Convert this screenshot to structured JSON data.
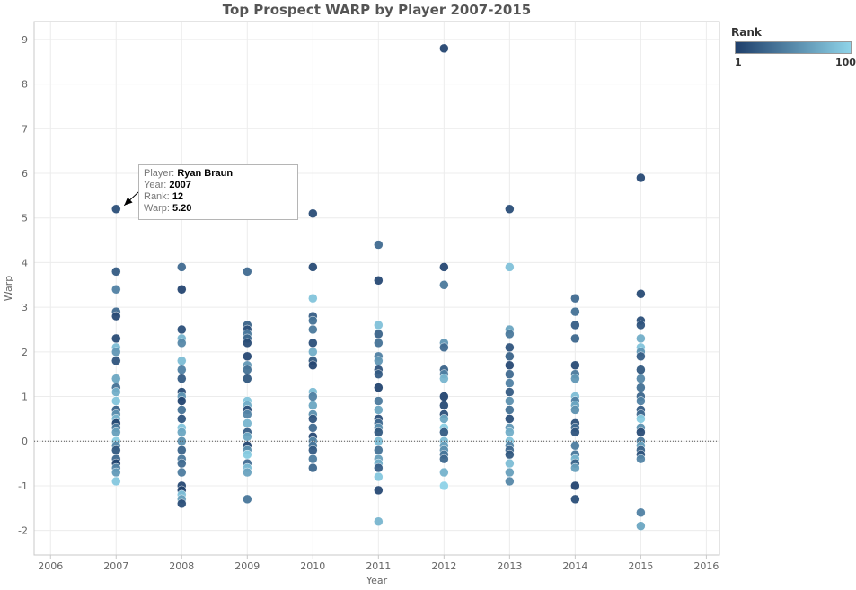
{
  "chart_data": {
    "type": "scatter",
    "title": "Top Prospect WARP by Player 2007-2015",
    "xlabel": "Year",
    "ylabel": "Warp",
    "xlim": [
      2005.75,
      2016.2
    ],
    "ylim": [
      -2.55,
      9.4
    ],
    "x_ticks": [
      "2006",
      "2007",
      "2008",
      "2009",
      "2010",
      "2011",
      "2012",
      "2013",
      "2014",
      "2015",
      "2016"
    ],
    "y_ticks": [
      "-2",
      "-1",
      "0",
      "1",
      "2",
      "3",
      "4",
      "5",
      "6",
      "7",
      "8",
      "9"
    ],
    "grid": true,
    "zero_line": "dotted",
    "legend": {
      "title": "Rank",
      "min": "1",
      "max": "100",
      "placement": "top-right",
      "color_low": "#1f3f6b",
      "color_high": "#8ed3e8"
    },
    "points": [
      {
        "x": 2007,
        "y": 5.2,
        "r": 12
      },
      {
        "x": 2007,
        "y": 3.8,
        "r": 20
      },
      {
        "x": 2007,
        "y": 3.4,
        "r": 45
      },
      {
        "x": 2007,
        "y": 2.9,
        "r": 30
      },
      {
        "x": 2007,
        "y": 2.8,
        "r": 8
      },
      {
        "x": 2007,
        "y": 2.3,
        "r": 10
      },
      {
        "x": 2007,
        "y": 2.1,
        "r": 85
      },
      {
        "x": 2007,
        "y": 2.0,
        "r": 60
      },
      {
        "x": 2007,
        "y": 1.8,
        "r": 15
      },
      {
        "x": 2007,
        "y": 1.4,
        "r": 70
      },
      {
        "x": 2007,
        "y": 1.2,
        "r": 35
      },
      {
        "x": 2007,
        "y": 1.1,
        "r": 75
      },
      {
        "x": 2007,
        "y": 0.9,
        "r": 90
      },
      {
        "x": 2007,
        "y": 0.7,
        "r": 25
      },
      {
        "x": 2007,
        "y": 0.6,
        "r": 55
      },
      {
        "x": 2007,
        "y": 0.5,
        "r": 80
      },
      {
        "x": 2007,
        "y": 0.4,
        "r": 5
      },
      {
        "x": 2007,
        "y": 0.3,
        "r": 40
      },
      {
        "x": 2007,
        "y": 0.2,
        "r": 65
      },
      {
        "x": 2007,
        "y": 0.0,
        "r": 95
      },
      {
        "x": 2007,
        "y": -0.1,
        "r": 50
      },
      {
        "x": 2007,
        "y": -0.2,
        "r": 18
      },
      {
        "x": 2007,
        "y": -0.4,
        "r": 28
      },
      {
        "x": 2007,
        "y": -0.5,
        "r": 3
      },
      {
        "x": 2007,
        "y": -0.6,
        "r": 48
      },
      {
        "x": 2007,
        "y": -0.7,
        "r": 62
      },
      {
        "x": 2007,
        "y": -0.9,
        "r": 92
      },
      {
        "x": 2008,
        "y": 3.9,
        "r": 30
      },
      {
        "x": 2008,
        "y": 3.4,
        "r": 6
      },
      {
        "x": 2008,
        "y": 2.5,
        "r": 12
      },
      {
        "x": 2008,
        "y": 2.3,
        "r": 80
      },
      {
        "x": 2008,
        "y": 2.2,
        "r": 50
      },
      {
        "x": 2008,
        "y": 1.8,
        "r": 85
      },
      {
        "x": 2008,
        "y": 1.6,
        "r": 45
      },
      {
        "x": 2008,
        "y": 1.4,
        "r": 20
      },
      {
        "x": 2008,
        "y": 1.1,
        "r": 10
      },
      {
        "x": 2008,
        "y": 1.0,
        "r": 60
      },
      {
        "x": 2008,
        "y": 0.9,
        "r": 4
      },
      {
        "x": 2008,
        "y": 0.7,
        "r": 35
      },
      {
        "x": 2008,
        "y": 0.5,
        "r": 15
      },
      {
        "x": 2008,
        "y": 0.3,
        "r": 90
      },
      {
        "x": 2008,
        "y": 0.2,
        "r": 70
      },
      {
        "x": 2008,
        "y": 0.0,
        "r": 55
      },
      {
        "x": 2008,
        "y": -0.2,
        "r": 25
      },
      {
        "x": 2008,
        "y": -0.4,
        "r": 40
      },
      {
        "x": 2008,
        "y": -0.5,
        "r": 30
      },
      {
        "x": 2008,
        "y": -0.7,
        "r": 42
      },
      {
        "x": 2008,
        "y": -1.0,
        "r": 8
      },
      {
        "x": 2008,
        "y": -1.1,
        "r": 2
      },
      {
        "x": 2008,
        "y": -1.2,
        "r": 88
      },
      {
        "x": 2008,
        "y": -1.3,
        "r": 65
      },
      {
        "x": 2008,
        "y": -1.4,
        "r": 11
      },
      {
        "x": 2009,
        "y": 3.8,
        "r": 30
      },
      {
        "x": 2009,
        "y": 2.6,
        "r": 25
      },
      {
        "x": 2009,
        "y": 2.5,
        "r": 14
      },
      {
        "x": 2009,
        "y": 2.4,
        "r": 40
      },
      {
        "x": 2009,
        "y": 2.3,
        "r": 28
      },
      {
        "x": 2009,
        "y": 2.2,
        "r": 9
      },
      {
        "x": 2009,
        "y": 1.9,
        "r": 7
      },
      {
        "x": 2009,
        "y": 1.7,
        "r": 60
      },
      {
        "x": 2009,
        "y": 1.6,
        "r": 35
      },
      {
        "x": 2009,
        "y": 1.4,
        "r": 18
      },
      {
        "x": 2009,
        "y": 0.9,
        "r": 90
      },
      {
        "x": 2009,
        "y": 0.8,
        "r": 75
      },
      {
        "x": 2009,
        "y": 0.7,
        "r": 12
      },
      {
        "x": 2009,
        "y": 0.6,
        "r": 48
      },
      {
        "x": 2009,
        "y": 0.4,
        "r": 80
      },
      {
        "x": 2009,
        "y": 0.2,
        "r": 22
      },
      {
        "x": 2009,
        "y": 0.1,
        "r": 70
      },
      {
        "x": 2009,
        "y": -0.1,
        "r": 5
      },
      {
        "x": 2009,
        "y": -0.2,
        "r": 55
      },
      {
        "x": 2009,
        "y": -0.3,
        "r": 95
      },
      {
        "x": 2009,
        "y": -0.5,
        "r": 32
      },
      {
        "x": 2009,
        "y": -0.6,
        "r": 85
      },
      {
        "x": 2009,
        "y": -0.7,
        "r": 68
      },
      {
        "x": 2009,
        "y": -1.3,
        "r": 38
      },
      {
        "x": 2010,
        "y": 5.1,
        "r": 10
      },
      {
        "x": 2010,
        "y": 3.9,
        "r": 9
      },
      {
        "x": 2010,
        "y": 3.2,
        "r": 90
      },
      {
        "x": 2010,
        "y": 2.8,
        "r": 22
      },
      {
        "x": 2010,
        "y": 2.7,
        "r": 35
      },
      {
        "x": 2010,
        "y": 2.5,
        "r": 40
      },
      {
        "x": 2010,
        "y": 2.2,
        "r": 12
      },
      {
        "x": 2010,
        "y": 2.0,
        "r": 75
      },
      {
        "x": 2010,
        "y": 1.8,
        "r": 18
      },
      {
        "x": 2010,
        "y": 1.7,
        "r": 6
      },
      {
        "x": 2010,
        "y": 1.1,
        "r": 85
      },
      {
        "x": 2010,
        "y": 1.0,
        "r": 45
      },
      {
        "x": 2010,
        "y": 0.8,
        "r": 70
      },
      {
        "x": 2010,
        "y": 0.6,
        "r": 55
      },
      {
        "x": 2010,
        "y": 0.5,
        "r": 15
      },
      {
        "x": 2010,
        "y": 0.3,
        "r": 30
      },
      {
        "x": 2010,
        "y": 0.1,
        "r": 8
      },
      {
        "x": 2010,
        "y": 0.0,
        "r": 50
      },
      {
        "x": 2010,
        "y": -0.1,
        "r": 38
      },
      {
        "x": 2010,
        "y": -0.2,
        "r": 20
      },
      {
        "x": 2010,
        "y": -0.4,
        "r": 42
      },
      {
        "x": 2010,
        "y": -0.6,
        "r": 28
      },
      {
        "x": 2011,
        "y": 4.4,
        "r": 30
      },
      {
        "x": 2011,
        "y": 3.6,
        "r": 8
      },
      {
        "x": 2011,
        "y": 2.6,
        "r": 88
      },
      {
        "x": 2011,
        "y": 2.4,
        "r": 25
      },
      {
        "x": 2011,
        "y": 2.2,
        "r": 35
      },
      {
        "x": 2011,
        "y": 1.9,
        "r": 45
      },
      {
        "x": 2011,
        "y": 1.8,
        "r": 60
      },
      {
        "x": 2011,
        "y": 1.6,
        "r": 15
      },
      {
        "x": 2011,
        "y": 1.5,
        "r": 20
      },
      {
        "x": 2011,
        "y": 1.2,
        "r": 5
      },
      {
        "x": 2011,
        "y": 0.9,
        "r": 40
      },
      {
        "x": 2011,
        "y": 0.7,
        "r": 70
      },
      {
        "x": 2011,
        "y": 0.5,
        "r": 12
      },
      {
        "x": 2011,
        "y": 0.4,
        "r": 30
      },
      {
        "x": 2011,
        "y": 0.3,
        "r": 55
      },
      {
        "x": 2011,
        "y": 0.2,
        "r": 18
      },
      {
        "x": 2011,
        "y": 0.0,
        "r": 85
      },
      {
        "x": 2011,
        "y": -0.2,
        "r": 35
      },
      {
        "x": 2011,
        "y": -0.4,
        "r": 65
      },
      {
        "x": 2011,
        "y": -0.5,
        "r": 75
      },
      {
        "x": 2011,
        "y": -0.6,
        "r": 22
      },
      {
        "x": 2011,
        "y": -0.8,
        "r": 92
      },
      {
        "x": 2011,
        "y": -1.1,
        "r": 8
      },
      {
        "x": 2011,
        "y": -1.8,
        "r": 80
      },
      {
        "x": 2012,
        "y": 8.8,
        "r": 6
      },
      {
        "x": 2012,
        "y": 3.9,
        "r": 7
      },
      {
        "x": 2012,
        "y": 3.5,
        "r": 40
      },
      {
        "x": 2012,
        "y": 2.2,
        "r": 60
      },
      {
        "x": 2012,
        "y": 2.1,
        "r": 30
      },
      {
        "x": 2012,
        "y": 1.6,
        "r": 25
      },
      {
        "x": 2012,
        "y": 1.5,
        "r": 45
      },
      {
        "x": 2012,
        "y": 1.4,
        "r": 80
      },
      {
        "x": 2012,
        "y": 1.0,
        "r": 5
      },
      {
        "x": 2012,
        "y": 0.8,
        "r": 9
      },
      {
        "x": 2012,
        "y": 0.6,
        "r": 12
      },
      {
        "x": 2012,
        "y": 0.5,
        "r": 70
      },
      {
        "x": 2012,
        "y": 0.3,
        "r": 95
      },
      {
        "x": 2012,
        "y": 0.2,
        "r": 20
      },
      {
        "x": 2012,
        "y": 0.0,
        "r": 85
      },
      {
        "x": 2012,
        "y": -0.1,
        "r": 65
      },
      {
        "x": 2012,
        "y": -0.2,
        "r": 55
      },
      {
        "x": 2012,
        "y": -0.3,
        "r": 38
      },
      {
        "x": 2012,
        "y": -0.4,
        "r": 28
      },
      {
        "x": 2012,
        "y": -0.7,
        "r": 78
      },
      {
        "x": 2012,
        "y": -1.0,
        "r": 100
      },
      {
        "x": 2013,
        "y": 5.2,
        "r": 11
      },
      {
        "x": 2013,
        "y": 3.9,
        "r": 88
      },
      {
        "x": 2013,
        "y": 2.5,
        "r": 70
      },
      {
        "x": 2013,
        "y": 2.4,
        "r": 40
      },
      {
        "x": 2013,
        "y": 2.1,
        "r": 15
      },
      {
        "x": 2013,
        "y": 1.9,
        "r": 25
      },
      {
        "x": 2013,
        "y": 1.7,
        "r": 8
      },
      {
        "x": 2013,
        "y": 1.5,
        "r": 30
      },
      {
        "x": 2013,
        "y": 1.3,
        "r": 45
      },
      {
        "x": 2013,
        "y": 1.1,
        "r": 20
      },
      {
        "x": 2013,
        "y": 0.9,
        "r": 55
      },
      {
        "x": 2013,
        "y": 0.7,
        "r": 35
      },
      {
        "x": 2013,
        "y": 0.5,
        "r": 12
      },
      {
        "x": 2013,
        "y": 0.3,
        "r": 60
      },
      {
        "x": 2013,
        "y": 0.2,
        "r": 75
      },
      {
        "x": 2013,
        "y": 0.0,
        "r": 90
      },
      {
        "x": 2013,
        "y": -0.1,
        "r": 48
      },
      {
        "x": 2013,
        "y": -0.2,
        "r": 30
      },
      {
        "x": 2013,
        "y": -0.3,
        "r": 18
      },
      {
        "x": 2013,
        "y": -0.5,
        "r": 85
      },
      {
        "x": 2013,
        "y": -0.7,
        "r": 65
      },
      {
        "x": 2013,
        "y": -0.9,
        "r": 50
      },
      {
        "x": 2014,
        "y": 3.2,
        "r": 30
      },
      {
        "x": 2014,
        "y": 2.9,
        "r": 35
      },
      {
        "x": 2014,
        "y": 2.6,
        "r": 22
      },
      {
        "x": 2014,
        "y": 2.3,
        "r": 28
      },
      {
        "x": 2014,
        "y": 1.7,
        "r": 10
      },
      {
        "x": 2014,
        "y": 1.5,
        "r": 40
      },
      {
        "x": 2014,
        "y": 1.4,
        "r": 60
      },
      {
        "x": 2014,
        "y": 1.0,
        "r": 85
      },
      {
        "x": 2014,
        "y": 0.9,
        "r": 45
      },
      {
        "x": 2014,
        "y": 0.8,
        "r": 70
      },
      {
        "x": 2014,
        "y": 0.7,
        "r": 55
      },
      {
        "x": 2014,
        "y": 0.4,
        "r": 12
      },
      {
        "x": 2014,
        "y": 0.3,
        "r": 30
      },
      {
        "x": 2014,
        "y": 0.2,
        "r": 15
      },
      {
        "x": 2014,
        "y": -0.1,
        "r": 42
      },
      {
        "x": 2014,
        "y": -0.3,
        "r": 38
      },
      {
        "x": 2014,
        "y": -0.4,
        "r": 80
      },
      {
        "x": 2014,
        "y": -0.5,
        "r": 25
      },
      {
        "x": 2014,
        "y": -0.6,
        "r": 65
      },
      {
        "x": 2014,
        "y": -1.0,
        "r": 6
      },
      {
        "x": 2014,
        "y": -1.3,
        "r": 11
      },
      {
        "x": 2015,
        "y": 5.9,
        "r": 8
      },
      {
        "x": 2015,
        "y": 3.3,
        "r": 9
      },
      {
        "x": 2015,
        "y": 2.7,
        "r": 12
      },
      {
        "x": 2015,
        "y": 2.6,
        "r": 15
      },
      {
        "x": 2015,
        "y": 2.3,
        "r": 75
      },
      {
        "x": 2015,
        "y": 2.1,
        "r": 90
      },
      {
        "x": 2015,
        "y": 2.0,
        "r": 60
      },
      {
        "x": 2015,
        "y": 1.9,
        "r": 22
      },
      {
        "x": 2015,
        "y": 1.6,
        "r": 18
      },
      {
        "x": 2015,
        "y": 1.4,
        "r": 50
      },
      {
        "x": 2015,
        "y": 1.2,
        "r": 35
      },
      {
        "x": 2015,
        "y": 1.0,
        "r": 28
      },
      {
        "x": 2015,
        "y": 0.9,
        "r": 45
      },
      {
        "x": 2015,
        "y": 0.7,
        "r": 20
      },
      {
        "x": 2015,
        "y": 0.6,
        "r": 30
      },
      {
        "x": 2015,
        "y": 0.5,
        "r": 95
      },
      {
        "x": 2015,
        "y": 0.3,
        "r": 55
      },
      {
        "x": 2015,
        "y": 0.2,
        "r": 10
      },
      {
        "x": 2015,
        "y": 0.0,
        "r": 40
      },
      {
        "x": 2015,
        "y": -0.1,
        "r": 65
      },
      {
        "x": 2015,
        "y": -0.2,
        "r": 25
      },
      {
        "x": 2015,
        "y": -0.3,
        "r": 15
      },
      {
        "x": 2015,
        "y": -0.4,
        "r": 48
      },
      {
        "x": 2015,
        "y": -1.6,
        "r": 45
      },
      {
        "x": 2015,
        "y": -1.9,
        "r": 70
      }
    ]
  },
  "tooltip": {
    "player_key": "Player:",
    "player_value": "Ryan Braun",
    "year_key": "Year:",
    "year_value": "2007",
    "rank_key": "Rank:",
    "rank_value": "12",
    "warp_key": "Warp:",
    "warp_value": "5.20",
    "target_year": 2007,
    "target_warp": 5.2
  },
  "colors": {
    "grid": "#ececec",
    "axis": "#c8c8c8",
    "tick_text": "#666666",
    "zero_line": "#555555"
  }
}
